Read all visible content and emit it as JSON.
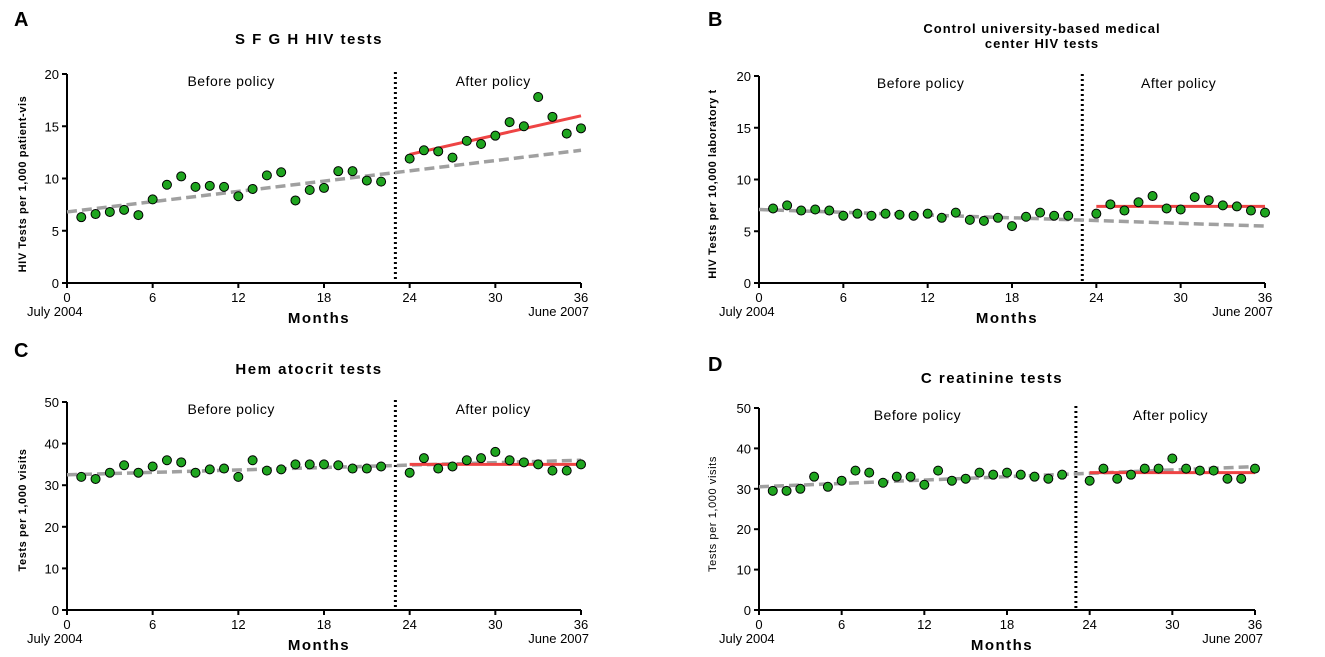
{
  "chart_data": [
    {
      "type": "scatter",
      "panel": "A",
      "title": "S F G H  HIV  tests",
      "xlabel": "Months",
      "ylabel": "HIV Tests per 1,000 patient-vis",
      "start_label": "July 2004",
      "end_label": "June 2007",
      "before_label": "Before policy",
      "after_label": "After policy",
      "policy_month": 23,
      "xlim": [
        0,
        36
      ],
      "ylim": [
        0,
        20
      ],
      "xticks": [
        0,
        6,
        12,
        18,
        24,
        30,
        36
      ],
      "yticks": [
        0,
        5,
        10,
        15,
        20
      ],
      "points": {
        "x": [
          1,
          2,
          3,
          4,
          5,
          6,
          7,
          8,
          9,
          10,
          11,
          12,
          13,
          14,
          15,
          16,
          17,
          18,
          19,
          20,
          21,
          22,
          24,
          25,
          26,
          27,
          28,
          29,
          30,
          31,
          32,
          33,
          34,
          35,
          36
        ],
        "y": [
          6.3,
          6.6,
          6.8,
          7.0,
          6.5,
          8.0,
          9.4,
          10.2,
          9.2,
          9.3,
          9.2,
          8.3,
          9.0,
          10.3,
          10.6,
          7.9,
          8.9,
          9.1,
          10.7,
          10.7,
          9.8,
          9.7,
          11.9,
          12.7,
          12.6,
          12.0,
          13.6,
          13.3,
          14.1,
          15.4,
          15.0,
          17.8,
          15.9,
          14.3,
          14.8
        ]
      },
      "trend_before": {
        "x": [
          0,
          36
        ],
        "y": [
          6.8,
          12.7
        ]
      },
      "trend_after": {
        "x": [
          24,
          36
        ],
        "y": [
          12.3,
          16.0
        ]
      }
    },
    {
      "type": "scatter",
      "panel": "B",
      "title_lines": [
        "Control university-based medical",
        "center HIV tests"
      ],
      "xlabel": "Months",
      "ylabel": "HIV Tests per 10,000 laboratory t",
      "start_label": "July 2004",
      "end_label": "June 2007",
      "before_label": "Before policy",
      "after_label": "After policy",
      "policy_month": 23,
      "xlim": [
        0,
        36
      ],
      "ylim": [
        0,
        20
      ],
      "xticks": [
        0,
        6,
        12,
        18,
        24,
        30,
        36
      ],
      "yticks": [
        0,
        5,
        10,
        15,
        20
      ],
      "points": {
        "x": [
          1,
          2,
          3,
          4,
          5,
          6,
          7,
          8,
          9,
          10,
          11,
          12,
          13,
          14,
          15,
          16,
          17,
          18,
          19,
          20,
          21,
          22,
          24,
          25,
          26,
          27,
          28,
          29,
          30,
          31,
          32,
          33,
          34,
          35,
          36
        ],
        "y": [
          7.2,
          7.5,
          7.0,
          7.1,
          7.0,
          6.5,
          6.7,
          6.5,
          6.7,
          6.6,
          6.5,
          6.7,
          6.3,
          6.8,
          6.1,
          6.0,
          6.3,
          5.5,
          6.4,
          6.8,
          6.5,
          6.5,
          6.7,
          7.6,
          7.0,
          7.8,
          8.4,
          7.2,
          7.1,
          8.3,
          8.0,
          7.5,
          7.4,
          7.0,
          6.8
        ]
      },
      "trend_before": {
        "x": [
          0,
          36
        ],
        "y": [
          7.1,
          5.5
        ]
      },
      "trend_after": {
        "x": [
          24,
          36
        ],
        "y": [
          7.4,
          7.4
        ]
      }
    },
    {
      "type": "scatter",
      "panel": "C",
      "title": "Hem atocrit tests",
      "xlabel": "Months",
      "ylabel": "Tests per 1,000 visits",
      "start_label": "July 2004",
      "end_label": "June 2007",
      "before_label": "Before policy",
      "after_label": "After policy",
      "policy_month": 23,
      "xlim": [
        0,
        36
      ],
      "ylim": [
        0,
        50
      ],
      "xticks": [
        0,
        6,
        12,
        18,
        24,
        30,
        36
      ],
      "yticks": [
        0,
        10,
        20,
        30,
        40,
        50
      ],
      "points": {
        "x": [
          1,
          2,
          3,
          4,
          5,
          6,
          7,
          8,
          9,
          10,
          11,
          12,
          13,
          14,
          15,
          16,
          17,
          18,
          19,
          20,
          21,
          22,
          24,
          25,
          26,
          27,
          28,
          29,
          30,
          31,
          32,
          33,
          34,
          35,
          36
        ],
        "y": [
          32.0,
          31.5,
          33.0,
          34.8,
          33.0,
          34.5,
          36.0,
          35.5,
          33.0,
          33.8,
          34.0,
          32.0,
          36.0,
          33.5,
          33.8,
          35.0,
          35.0,
          35.0,
          34.8,
          34.0,
          34.0,
          34.5,
          33.0,
          36.5,
          34.0,
          34.5,
          36.0,
          36.5,
          38.0,
          36.0,
          35.5,
          35.0,
          33.5,
          33.5,
          35.0
        ]
      },
      "trend_before": {
        "x": [
          0,
          36
        ],
        "y": [
          32.5,
          36.0
        ]
      },
      "trend_after": {
        "x": [
          24,
          36
        ],
        "y": [
          35.0,
          35.0
        ]
      }
    },
    {
      "type": "scatter",
      "panel": "D",
      "title": "C reatinine tests",
      "xlabel": "Months",
      "ylabel": "Tests per 1,000 visits",
      "start_label": "July 2004",
      "end_label": "June 2007",
      "before_label": "Before policy",
      "after_label": "After policy",
      "policy_month": 23,
      "xlim": [
        0,
        36
      ],
      "ylim": [
        0,
        50
      ],
      "xticks": [
        0,
        6,
        12,
        18,
        24,
        30,
        36
      ],
      "yticks": [
        0,
        10,
        20,
        30,
        40,
        50
      ],
      "points": {
        "x": [
          1,
          2,
          3,
          4,
          5,
          6,
          7,
          8,
          9,
          10,
          11,
          12,
          13,
          14,
          15,
          16,
          17,
          18,
          19,
          20,
          21,
          22,
          24,
          25,
          26,
          27,
          28,
          29,
          30,
          31,
          32,
          33,
          34,
          35,
          36
        ],
        "y": [
          29.5,
          29.5,
          30.0,
          33.0,
          30.5,
          32.0,
          34.5,
          34.0,
          31.5,
          33.0,
          33.0,
          31.0,
          34.5,
          32.0,
          32.5,
          34.0,
          33.5,
          34.0,
          33.5,
          33.0,
          32.5,
          33.5,
          32.0,
          35.0,
          32.5,
          33.5,
          35.0,
          35.0,
          37.5,
          35.0,
          34.5,
          34.5,
          32.5,
          32.5,
          35.0
        ]
      },
      "trend_before": {
        "x": [
          0,
          36
        ],
        "y": [
          30.5,
          35.5
        ]
      },
      "trend_after": {
        "x": [
          24,
          36
        ],
        "y": [
          34.0,
          34.0
        ]
      }
    }
  ],
  "colors": {
    "points": "#1fa51f",
    "point_edge": "#000000",
    "trend_before": "#a0a0a0",
    "trend_after": "#ee4444",
    "policy_line": "#000000"
  }
}
